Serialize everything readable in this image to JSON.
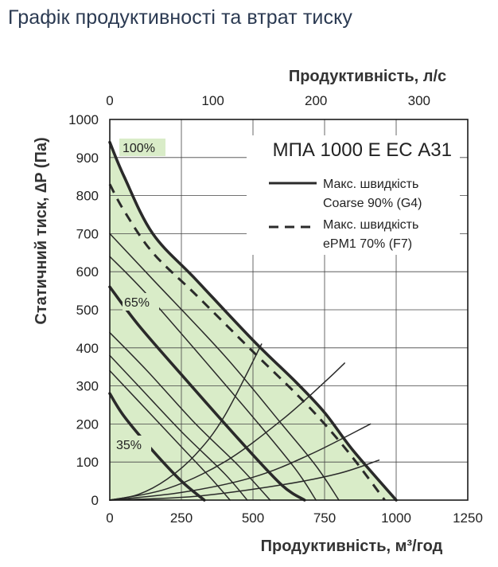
{
  "page": {
    "title": "Графік продуктивності та втрат тиску"
  },
  "chart_data": {
    "type": "line",
    "model_label": "МПА 1000 Е ЕС А31",
    "xlabel": "Продуктивність, м³/год",
    "x2label": "Продуктивність, л/с",
    "ylabel": "Статичний тиск, ∆P (Па)",
    "xlim": [
      0,
      1250
    ],
    "ylim": [
      0,
      1000
    ],
    "x_ticks": [
      "0",
      "250",
      "500",
      "750",
      "1000",
      "1250"
    ],
    "x_tick_values": [
      0,
      250,
      500,
      750,
      1000,
      1250
    ],
    "x2_ticks": [
      "0",
      "100",
      "200",
      "300"
    ],
    "x2_tick_values": [
      0,
      100,
      200,
      300
    ],
    "y_ticks": [
      "0",
      "100",
      "200",
      "300",
      "400",
      "500",
      "600",
      "700",
      "800",
      "900",
      "1000"
    ],
    "y_tick_values": [
      0,
      100,
      200,
      300,
      400,
      500,
      600,
      700,
      800,
      900,
      1000
    ],
    "grid": true,
    "colors": {
      "fill": "#d9ecc8",
      "line": "#2a2a2a",
      "grid": "#444444"
    },
    "legend": [
      {
        "style": "solid",
        "label_line1": "Макс. швидкість",
        "label_line2": "Coarse 90% (G4)"
      },
      {
        "style": "dashed",
        "label_line1": "Макс. швидкість",
        "label_line2": "ePM1 70% (F7)"
      }
    ],
    "curve_labels": [
      "100%",
      "65%",
      "35%"
    ],
    "series": [
      {
        "name": "100%",
        "style": "thick",
        "points": [
          [
            0,
            940
          ],
          [
            50,
            850
          ],
          [
            150,
            700
          ],
          [
            300,
            580
          ],
          [
            500,
            420
          ],
          [
            650,
            310
          ],
          [
            750,
            230
          ],
          [
            850,
            130
          ],
          [
            1000,
            0
          ]
        ]
      },
      {
        "name": "dashed",
        "style": "dashed",
        "points": [
          [
            0,
            830
          ],
          [
            50,
            760
          ],
          [
            150,
            650
          ],
          [
            300,
            540
          ],
          [
            500,
            390
          ],
          [
            650,
            280
          ],
          [
            750,
            200
          ],
          [
            850,
            110
          ],
          [
            960,
            0
          ]
        ]
      },
      {
        "style": "thin",
        "points": [
          [
            0,
            700
          ],
          [
            150,
            580
          ],
          [
            400,
            380
          ],
          [
            600,
            200
          ],
          [
            720,
            90
          ],
          [
            800,
            0
          ]
        ]
      },
      {
        "style": "thin",
        "points": [
          [
            0,
            640
          ],
          [
            130,
            540
          ],
          [
            350,
            350
          ],
          [
            520,
            200
          ],
          [
            650,
            80
          ],
          [
            720,
            0
          ]
        ]
      },
      {
        "name": "65%",
        "style": "thick",
        "points": [
          [
            0,
            560
          ],
          [
            100,
            460
          ],
          [
            250,
            330
          ],
          [
            450,
            160
          ],
          [
            600,
            40
          ],
          [
            680,
            0
          ]
        ]
      },
      {
        "style": "thin",
        "points": [
          [
            0,
            440
          ],
          [
            130,
            340
          ],
          [
            300,
            200
          ],
          [
            450,
            90
          ],
          [
            560,
            0
          ]
        ]
      },
      {
        "style": "thin",
        "points": [
          [
            0,
            380
          ],
          [
            100,
            300
          ],
          [
            250,
            180
          ],
          [
            400,
            70
          ],
          [
            480,
            0
          ]
        ]
      },
      {
        "style": "thin",
        "points": [
          [
            0,
            340
          ],
          [
            100,
            260
          ],
          [
            250,
            140
          ],
          [
            350,
            60
          ],
          [
            420,
            0
          ]
        ]
      },
      {
        "name": "35%",
        "style": "thick",
        "points": [
          [
            0,
            280
          ],
          [
            50,
            220
          ],
          [
            150,
            130
          ],
          [
            250,
            50
          ],
          [
            330,
            0
          ]
        ]
      },
      {
        "style": "thin",
        "points": [
          [
            0,
            0
          ],
          [
            100,
            15
          ],
          [
            200,
            55
          ],
          [
            300,
            120
          ],
          [
            400,
            220
          ],
          [
            530,
            410
          ]
        ]
      },
      {
        "style": "thin",
        "points": [
          [
            0,
            0
          ],
          [
            200,
            30
          ],
          [
            400,
            100
          ],
          [
            600,
            210
          ],
          [
            750,
            310
          ],
          [
            820,
            360
          ]
        ]
      },
      {
        "style": "thin",
        "points": [
          [
            0,
            0
          ],
          [
            250,
            20
          ],
          [
            500,
            60
          ],
          [
            700,
            120
          ],
          [
            910,
            200
          ]
        ]
      },
      {
        "style": "thin",
        "points": [
          [
            0,
            0
          ],
          [
            300,
            10
          ],
          [
            600,
            40
          ],
          [
            800,
            70
          ],
          [
            940,
            105
          ]
        ]
      }
    ],
    "shaded_region": [
      [
        0,
        940
      ],
      [
        50,
        850
      ],
      [
        150,
        700
      ],
      [
        300,
        580
      ],
      [
        500,
        420
      ],
      [
        650,
        310
      ],
      [
        750,
        230
      ],
      [
        850,
        130
      ],
      [
        1000,
        0
      ],
      [
        0,
        0
      ]
    ]
  }
}
